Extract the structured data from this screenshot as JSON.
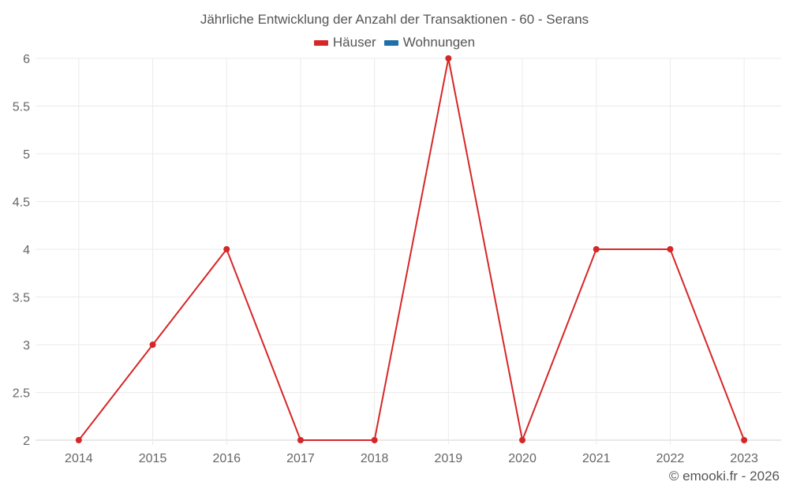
{
  "chart_data": {
    "type": "line",
    "title": "Jährliche Entwicklung der Anzahl der Transaktionen - 60 - Serans",
    "categories": [
      "2014",
      "2015",
      "2016",
      "2017",
      "2018",
      "2019",
      "2020",
      "2021",
      "2022",
      "2023"
    ],
    "series": [
      {
        "name": "Häuser",
        "color": "#d62728",
        "values": [
          2,
          3,
          4,
          2,
          2,
          6,
          2,
          4,
          4,
          2
        ]
      },
      {
        "name": "Wohnungen",
        "color": "#1f6fa8",
        "values": []
      }
    ],
    "xlabel": "",
    "ylabel": "",
    "ylim": [
      2,
      6
    ],
    "yticks": [
      "2",
      "2.5",
      "3",
      "3.5",
      "4",
      "4.5",
      "5",
      "5.5",
      "6"
    ],
    "grid": true,
    "legend_position": "top"
  },
  "credit": "© emooki.fr - 2026"
}
